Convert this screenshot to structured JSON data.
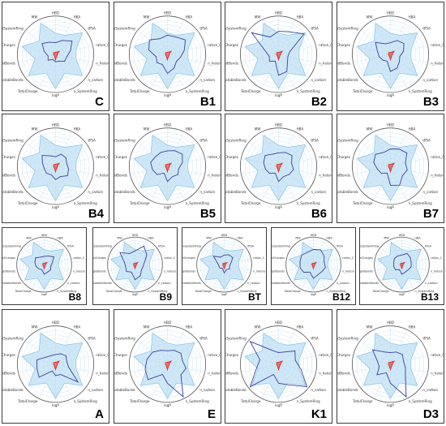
{
  "figure": {
    "axes": [
      "HBD",
      "HBA",
      "tPSA",
      "ration_C",
      "n_hetero",
      "n_carbon",
      "n_SystemRing",
      "logP",
      "TotalCharge",
      "RotatableBonds",
      "RigidBonds",
      "numCharges",
      "SizeSystemRing",
      "MW"
    ],
    "colors": {
      "range": "#cfe8f8",
      "range_stroke": "#7fbfe6",
      "ring": "#b9d8ec",
      "compound": "#3a3f9a",
      "reference": "#e8322a"
    }
  },
  "chart_data": [
    {
      "type": "radar",
      "label": "C",
      "range": [
        0.55,
        0.55,
        0.9,
        0.55,
        0.55,
        0.9,
        0.55,
        0.9,
        0.55,
        0.9,
        0.55,
        0.9,
        0.55,
        0.9
      ],
      "values": [
        0.3,
        0.4,
        0.55,
        0.4,
        0.3,
        0.3,
        0.2,
        0.2,
        0.15,
        0.25,
        0.2,
        0.3,
        0.45,
        0.35
      ],
      "reference": [
        0.05,
        0.06,
        0.12,
        0.05,
        0.05,
        0.05,
        0.06,
        0.14,
        0.06,
        0.05,
        0.05,
        0.05,
        0.06,
        0.05
      ]
    },
    {
      "type": "radar",
      "label": "B1",
      "range": [
        0.55,
        0.55,
        0.9,
        0.55,
        0.55,
        0.9,
        0.55,
        0.9,
        0.55,
        0.9,
        0.55,
        0.9,
        0.55,
        0.9
      ],
      "values": [
        0.5,
        0.5,
        0.6,
        0.45,
        0.35,
        0.3,
        0.4,
        0.5,
        0.3,
        0.35,
        0.3,
        0.5,
        0.6,
        0.45
      ],
      "reference": [
        0.05,
        0.06,
        0.12,
        0.05,
        0.05,
        0.05,
        0.06,
        0.14,
        0.06,
        0.05,
        0.05,
        0.05,
        0.06,
        0.05
      ]
    },
    {
      "type": "radar",
      "label": "B2",
      "range": [
        0.55,
        0.55,
        0.9,
        0.55,
        0.55,
        0.9,
        0.55,
        0.9,
        0.55,
        0.9,
        0.55,
        0.9,
        0.55,
        0.9
      ],
      "values": [
        0.6,
        0.65,
        0.85,
        0.3,
        0.25,
        0.3,
        0.5,
        0.55,
        0.2,
        0.3,
        0.25,
        0.35,
        0.9,
        0.5
      ],
      "reference": [
        0.05,
        0.06,
        0.12,
        0.05,
        0.05,
        0.05,
        0.06,
        0.14,
        0.06,
        0.05,
        0.05,
        0.05,
        0.06,
        0.05
      ]
    },
    {
      "type": "radar",
      "label": "B3",
      "range": [
        0.55,
        0.55,
        0.9,
        0.55,
        0.55,
        0.9,
        0.55,
        0.9,
        0.55,
        0.9,
        0.55,
        0.9,
        0.55,
        0.9
      ],
      "values": [
        0.3,
        0.4,
        0.45,
        0.35,
        0.25,
        0.3,
        0.4,
        0.45,
        0.2,
        0.25,
        0.3,
        0.35,
        0.5,
        0.3
      ],
      "reference": [
        0.05,
        0.06,
        0.12,
        0.05,
        0.05,
        0.05,
        0.06,
        0.14,
        0.06,
        0.05,
        0.05,
        0.05,
        0.06,
        0.05
      ]
    },
    {
      "type": "radar",
      "label": "B4",
      "range": [
        0.55,
        0.55,
        0.9,
        0.55,
        0.55,
        0.9,
        0.55,
        0.9,
        0.55,
        0.9,
        0.55,
        0.9,
        0.55,
        0.9
      ],
      "values": [
        0.25,
        0.35,
        0.35,
        0.3,
        0.35,
        0.4,
        0.3,
        0.35,
        0.25,
        0.3,
        0.3,
        0.35,
        0.45,
        0.3
      ],
      "reference": [
        0.05,
        0.06,
        0.12,
        0.05,
        0.05,
        0.05,
        0.06,
        0.14,
        0.06,
        0.05,
        0.05,
        0.05,
        0.06,
        0.05
      ]
    },
    {
      "type": "radar",
      "label": "B5",
      "range": [
        0.55,
        0.55,
        0.9,
        0.55,
        0.55,
        0.9,
        0.55,
        0.9,
        0.55,
        0.9,
        0.55,
        0.9,
        0.55,
        0.9
      ],
      "values": [
        0.4,
        0.45,
        0.5,
        0.4,
        0.3,
        0.35,
        0.3,
        0.4,
        0.2,
        0.35,
        0.4,
        0.45,
        0.4,
        0.4
      ],
      "reference": [
        0.05,
        0.06,
        0.12,
        0.05,
        0.05,
        0.05,
        0.06,
        0.14,
        0.06,
        0.05,
        0.05,
        0.05,
        0.06,
        0.05
      ]
    },
    {
      "type": "radar",
      "label": "B6",
      "range": [
        0.55,
        0.55,
        0.9,
        0.55,
        0.55,
        0.9,
        0.55,
        0.9,
        0.55,
        0.9,
        0.55,
        0.9,
        0.55,
        0.9
      ],
      "values": [
        0.35,
        0.4,
        0.45,
        0.35,
        0.4,
        0.35,
        0.3,
        0.4,
        0.2,
        0.3,
        0.35,
        0.4,
        0.45,
        0.35
      ],
      "reference": [
        0.05,
        0.06,
        0.12,
        0.05,
        0.05,
        0.05,
        0.06,
        0.14,
        0.06,
        0.05,
        0.05,
        0.05,
        0.06,
        0.05
      ]
    },
    {
      "type": "radar",
      "label": "B7",
      "range": [
        0.55,
        0.55,
        0.9,
        0.55,
        0.55,
        0.9,
        0.55,
        0.9,
        0.55,
        0.9,
        0.55,
        0.9,
        0.55,
        0.9
      ],
      "values": [
        0.45,
        0.5,
        0.55,
        0.4,
        0.45,
        0.4,
        0.55,
        0.5,
        0.2,
        0.3,
        0.35,
        0.45,
        0.5,
        0.4
      ],
      "reference": [
        0.05,
        0.06,
        0.12,
        0.05,
        0.05,
        0.05,
        0.06,
        0.14,
        0.06,
        0.05,
        0.05,
        0.05,
        0.06,
        0.05
      ]
    },
    {
      "type": "radar",
      "label": "B8",
      "range": [
        0.55,
        0.55,
        0.9,
        0.55,
        0.55,
        0.9,
        0.55,
        0.9,
        0.55,
        0.9,
        0.55,
        0.9,
        0.55,
        0.9
      ],
      "values": [
        0.3,
        0.35,
        0.45,
        0.3,
        0.25,
        0.3,
        0.3,
        0.35,
        0.2,
        0.25,
        0.3,
        0.35,
        0.4,
        0.3
      ],
      "reference": [
        0.05,
        0.06,
        0.12,
        0.05,
        0.05,
        0.05,
        0.06,
        0.14,
        0.06,
        0.05,
        0.05,
        0.05,
        0.06,
        0.05
      ]
    },
    {
      "type": "radar",
      "label": "B9",
      "range": [
        0.55,
        0.55,
        0.9,
        0.55,
        0.55,
        0.9,
        0.55,
        0.9,
        0.55,
        0.9,
        0.55,
        0.9,
        0.55,
        0.9
      ],
      "values": [
        0.5,
        0.75,
        0.55,
        0.35,
        0.3,
        0.3,
        0.45,
        0.55,
        0.3,
        0.4,
        0.35,
        0.4,
        0.7,
        0.45
      ],
      "reference": [
        0.05,
        0.06,
        0.12,
        0.05,
        0.05,
        0.05,
        0.06,
        0.14,
        0.06,
        0.05,
        0.05,
        0.05,
        0.06,
        0.05
      ]
    },
    {
      "type": "radar",
      "label": "BT",
      "range": [
        0.55,
        0.55,
        0.9,
        0.55,
        0.55,
        0.9,
        0.55,
        0.9,
        0.55,
        0.9,
        0.55,
        0.9,
        0.55,
        0.9
      ],
      "values": [
        0.35,
        0.4,
        0.4,
        0.25,
        0.2,
        0.25,
        0.2,
        0.3,
        0.15,
        0.2,
        0.2,
        0.25,
        0.5,
        0.3
      ],
      "reference": [
        0.05,
        0.06,
        0.12,
        0.05,
        0.05,
        0.05,
        0.06,
        0.14,
        0.06,
        0.05,
        0.05,
        0.05,
        0.06,
        0.05
      ]
    },
    {
      "type": "radar",
      "label": "B12",
      "range": [
        0.55,
        0.55,
        0.9,
        0.55,
        0.55,
        0.9,
        0.55,
        0.9,
        0.55,
        0.9,
        0.55,
        0.9,
        0.55,
        0.9
      ],
      "values": [
        0.55,
        0.6,
        0.5,
        0.4,
        0.45,
        0.4,
        0.4,
        0.5,
        0.3,
        0.45,
        0.5,
        0.5,
        0.55,
        0.5
      ],
      "reference": [
        0.05,
        0.06,
        0.12,
        0.05,
        0.05,
        0.05,
        0.06,
        0.14,
        0.06,
        0.05,
        0.05,
        0.05,
        0.06,
        0.05
      ]
    },
    {
      "type": "radar",
      "label": "B13",
      "range": [
        0.55,
        0.55,
        0.9,
        0.55,
        0.55,
        0.9,
        0.55,
        0.9,
        0.55,
        0.9,
        0.55,
        0.9,
        0.55,
        0.9
      ],
      "values": [
        0.35,
        0.45,
        0.4,
        0.35,
        0.35,
        0.3,
        0.3,
        0.35,
        0.2,
        0.3,
        0.3,
        0.3,
        0.35,
        0.35
      ],
      "reference": [
        0.05,
        0.06,
        0.12,
        0.05,
        0.05,
        0.05,
        0.06,
        0.14,
        0.06,
        0.05,
        0.05,
        0.05,
        0.06,
        0.05
      ]
    },
    {
      "type": "radar",
      "label": "A",
      "range": [
        0.55,
        0.55,
        0.9,
        0.55,
        0.55,
        0.9,
        0.55,
        0.9,
        0.55,
        0.9,
        0.55,
        0.9,
        0.55,
        0.9
      ],
      "values": [
        0.25,
        0.3,
        0.35,
        0.3,
        0.35,
        0.75,
        0.3,
        0.3,
        0.2,
        0.55,
        0.5,
        0.5,
        0.3,
        0.25
      ],
      "reference": [
        0.05,
        0.06,
        0.12,
        0.05,
        0.05,
        0.05,
        0.06,
        0.14,
        0.06,
        0.05,
        0.05,
        0.05,
        0.06,
        0.05
      ]
    },
    {
      "type": "radar",
      "label": "E",
      "range": [
        0.55,
        0.55,
        0.9,
        0.55,
        0.55,
        0.9,
        0.55,
        0.9,
        0.55,
        0.9,
        0.55,
        0.9,
        0.55,
        0.9
      ],
      "values": [
        0.35,
        0.4,
        0.45,
        0.4,
        0.5,
        0.45,
        0.95,
        0.5,
        0.3,
        0.65,
        0.6,
        0.55,
        0.5,
        0.4
      ],
      "reference": [
        0.05,
        0.06,
        0.12,
        0.05,
        0.05,
        0.05,
        0.06,
        0.14,
        0.06,
        0.05,
        0.05,
        0.05,
        0.06,
        0.05
      ]
    },
    {
      "type": "radar",
      "label": "K1",
      "range": [
        0.55,
        0.55,
        0.9,
        0.55,
        0.55,
        0.9,
        0.55,
        0.9,
        0.55,
        0.9,
        0.55,
        0.9,
        0.55,
        0.9
      ],
      "values": [
        0.3,
        0.35,
        0.55,
        0.45,
        0.6,
        0.95,
        0.6,
        0.5,
        0.3,
        0.95,
        0.6,
        0.5,
        0.95,
        0.4
      ],
      "reference": [
        0.05,
        0.06,
        0.12,
        0.05,
        0.05,
        0.05,
        0.06,
        0.14,
        0.06,
        0.05,
        0.05,
        0.05,
        0.06,
        0.05
      ]
    },
    {
      "type": "radar",
      "label": "D3",
      "range": [
        0.55,
        0.55,
        0.9,
        0.55,
        0.55,
        0.9,
        0.55,
        0.9,
        0.55,
        0.9,
        0.55,
        0.9,
        0.55,
        0.9
      ],
      "values": [
        0.3,
        0.35,
        0.4,
        0.35,
        0.4,
        0.5,
        0.95,
        0.5,
        0.25,
        0.45,
        0.3,
        0.35,
        0.6,
        0.35
      ],
      "reference": [
        0.05,
        0.06,
        0.12,
        0.05,
        0.05,
        0.05,
        0.06,
        0.14,
        0.06,
        0.05,
        0.05,
        0.05,
        0.06,
        0.05
      ]
    }
  ]
}
